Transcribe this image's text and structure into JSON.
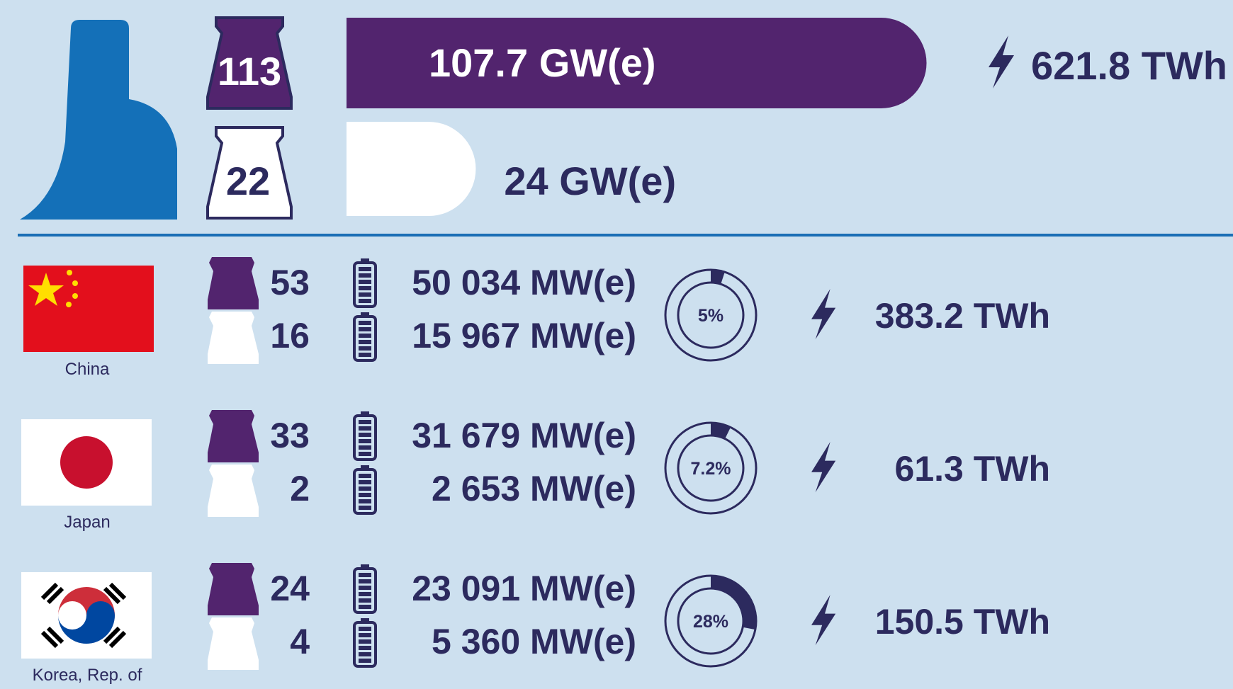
{
  "summary": {
    "operational": {
      "reactors": "113",
      "capacity": {
        "value": 107.7,
        "label": "107.7 GW(e)"
      }
    },
    "construction": {
      "reactors": "22",
      "capacity": {
        "value": 24,
        "label": "24 GW(e)"
      }
    },
    "generation": "621.8 TWh"
  },
  "countries": [
    {
      "name": "China",
      "operational_reactors": "53",
      "construction_reactors": "16",
      "operational_capacity": "50 034 MW(e)",
      "construction_capacity": "15 967 MW(e)",
      "share": {
        "value": 5,
        "label": "5%"
      },
      "generation": "383.2 TWh"
    },
    {
      "name": "Japan",
      "operational_reactors": "33",
      "construction_reactors": "2",
      "operational_capacity": "31 679 MW(e)",
      "construction_capacity": "2 653 MW(e)",
      "share": {
        "value": 7.2,
        "label": "7.2%"
      },
      "generation": "61.3 TWh"
    },
    {
      "name": "Korea, Rep. of",
      "operational_reactors": "24",
      "construction_reactors": "4",
      "operational_capacity": "23 091 MW(e)",
      "construction_capacity": "5 360 MW(e)",
      "share": {
        "value": 28,
        "label": "28%"
      },
      "generation": "150.5 TWh"
    }
  ]
}
